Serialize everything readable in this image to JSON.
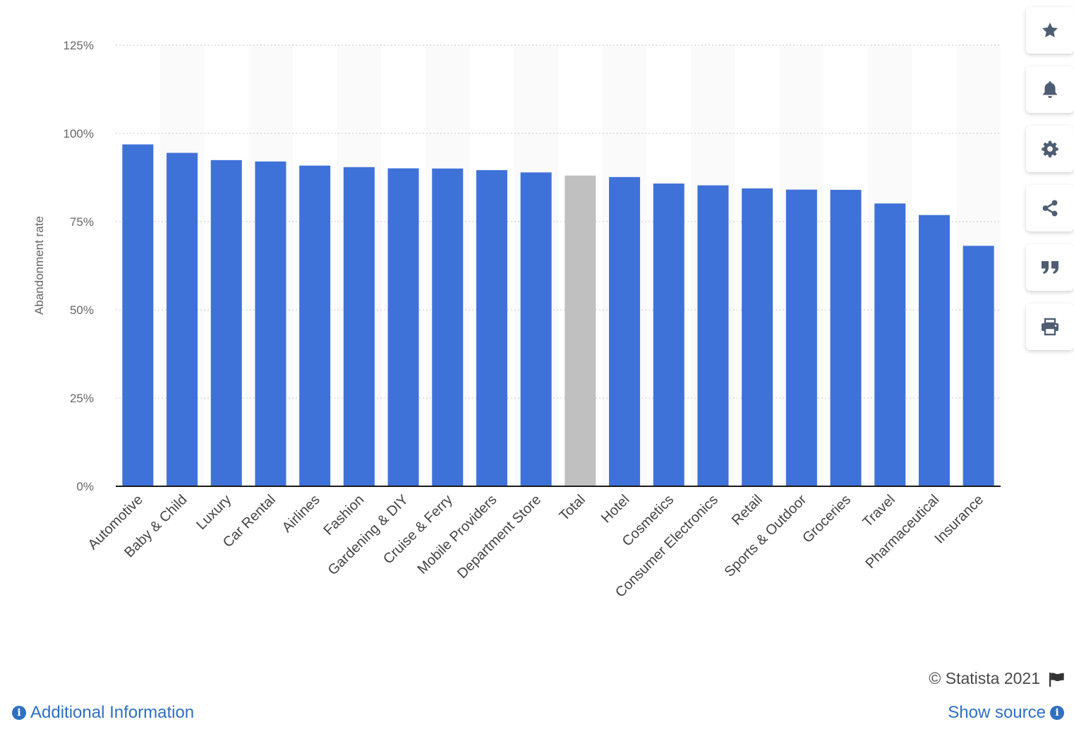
{
  "chart_data": {
    "type": "bar",
    "ylabel": "Abandonment rate",
    "xlabel": "",
    "ylim": [
      0,
      125
    ],
    "yticks": [
      0,
      25,
      50,
      75,
      100,
      125
    ],
    "ytick_suffix": "%",
    "grid": true,
    "categories": [
      "Automotive",
      "Baby & Child",
      "Luxury",
      "Car Rental",
      "Airlines",
      "Fashion",
      "Gardening & DIY",
      "Cruise & Ferry",
      "Mobile Providers",
      "Department Store",
      "Total",
      "Hotel",
      "Cosmetics",
      "Consumer Electronics",
      "Retail",
      "Sports & Outdoor",
      "Groceries",
      "Travel",
      "Pharmaceutical",
      "Insurance"
    ],
    "values": [
      96.88,
      94.48,
      92.43,
      92.04,
      90.87,
      90.44,
      90.1,
      90.05,
      89.59,
      88.94,
      88.05,
      87.63,
      85.79,
      85.28,
      84.41,
      84.07,
      84.01,
      80.14,
      76.87,
      68.14
    ],
    "highlight_category": "Total",
    "colors": {
      "bar": "#3f72d8",
      "highlight": "#c0c0c0",
      "band": "#fafafa",
      "grid": "#c8c8c8"
    }
  },
  "toolbar": {
    "items": [
      {
        "name": "favorite",
        "icon": "star-icon"
      },
      {
        "name": "notifications",
        "icon": "bell-icon"
      },
      {
        "name": "settings",
        "icon": "gear-icon"
      },
      {
        "name": "share",
        "icon": "share-icon"
      },
      {
        "name": "citation",
        "icon": "quote-icon"
      },
      {
        "name": "print",
        "icon": "print-icon"
      }
    ],
    "icon_color": "#4f5d73"
  },
  "footer": {
    "credit": "© Statista 2021",
    "additional_info": "Additional Information",
    "show_source": "Show source",
    "link_color": "#2f70c0"
  }
}
